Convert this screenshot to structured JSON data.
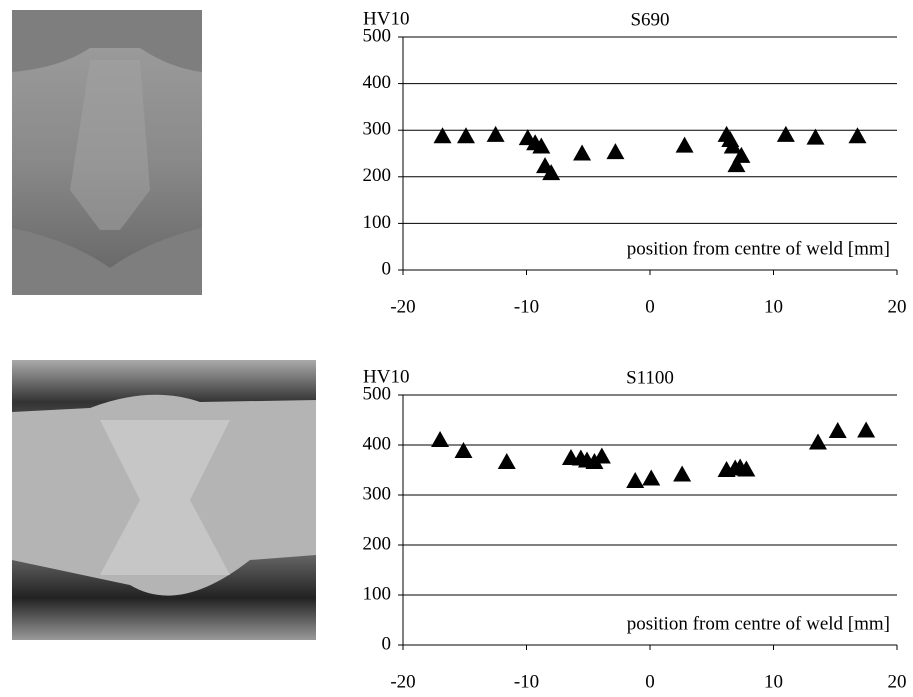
{
  "chart_data": [
    {
      "type": "scatter",
      "title": "S690",
      "y_label": "HV10",
      "annotation": "position from centre of weld [mm]",
      "color": "#000000",
      "marker": "triangle",
      "x": [
        -16.8,
        -14.9,
        -12.5,
        -9.9,
        -9.3,
        -8.8,
        -8.5,
        -8.0,
        -5.5,
        -2.8,
        2.8,
        6.2,
        6.5,
        6.7,
        7.0,
        7.4,
        11.0,
        13.4,
        16.8
      ],
      "values": [
        287,
        287,
        290,
        283,
        272,
        265,
        223,
        208,
        250,
        253,
        267,
        290,
        279,
        265,
        225,
        245,
        290,
        284,
        287
      ],
      "xlim": [
        -20,
        20
      ],
      "xticks": [
        -20,
        -10,
        0,
        10,
        20
      ],
      "ylim": [
        0,
        500
      ],
      "yticks": [
        0,
        100,
        200,
        300,
        400,
        500
      ],
      "grid": true
    },
    {
      "type": "scatter",
      "title": "S1100",
      "y_label": "HV10",
      "annotation": "position from centre of weld [mm]",
      "color": "#000000",
      "marker": "triangle",
      "x": [
        -17.0,
        -15.1,
        -11.6,
        -6.4,
        -5.6,
        -5.1,
        -4.5,
        -3.9,
        -1.2,
        0.1,
        2.6,
        6.2,
        6.9,
        7.3,
        7.8,
        13.6,
        15.2,
        17.5
      ],
      "values": [
        410,
        388,
        366,
        374,
        373,
        369,
        366,
        377,
        328,
        333,
        341,
        350,
        353,
        355,
        351,
        405,
        428,
        429
      ],
      "xlim": [
        -20,
        20
      ],
      "xticks": [
        -20,
        -10,
        0,
        10,
        20
      ],
      "ylim": [
        0,
        500
      ],
      "yticks": [
        0,
        100,
        200,
        300,
        400,
        500
      ],
      "grid": true
    }
  ]
}
